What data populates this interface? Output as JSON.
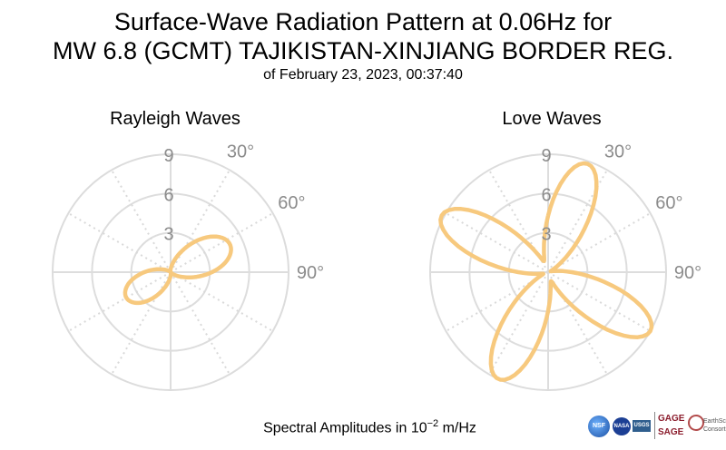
{
  "title": {
    "line1": "Surface-Wave Radiation Pattern at 0.06Hz for",
    "line2": "MW 6.8 (GCMT) TAJIKISTAN-XINJIANG BORDER REG.",
    "subtitle": "of February 23, 2023, 00:37:40"
  },
  "footer": {
    "label_prefix": "Spectral Amplitudes in 10",
    "label_exponent": "−2",
    "label_suffix": " m/Hz"
  },
  "logos": {
    "nsf": "NSF",
    "nasa": "NASA",
    "usgs": "USGS",
    "gage": "GAGE",
    "sage": "SAGE",
    "earthscope_line1": "EarthScope",
    "earthscope_line2": "Consortium"
  },
  "colors": {
    "pattern": "#f7c97e",
    "grid": "#dddddd",
    "tick_label": "#8c8c8c"
  },
  "chart_data": [
    {
      "type": "polar-line",
      "title": "Rayleigh Waves",
      "rmax": 9,
      "radial_ticks": [
        "3",
        "6",
        "9"
      ],
      "angular_ticks": [
        "30°",
        "60°",
        "90°"
      ],
      "direction": "clockwise",
      "zero_location": "north",
      "grid": true,
      "lobes": [
        {
          "azimuth_deg": 65,
          "amplitude": 5.0,
          "half_width_deg": 42
        },
        {
          "azimuth_deg": 240,
          "amplitude": 3.9,
          "half_width_deg": 42
        }
      ],
      "samples": [
        {
          "azimuth": 0,
          "amplitude": 0.3
        },
        {
          "azimuth": 30,
          "amplitude": 2.6
        },
        {
          "azimuth": 65,
          "amplitude": 5.0
        },
        {
          "azimuth": 90,
          "amplitude": 3.9
        },
        {
          "azimuth": 120,
          "amplitude": 1.0
        },
        {
          "azimuth": 150,
          "amplitude": 0.2
        },
        {
          "azimuth": 180,
          "amplitude": 0.3
        },
        {
          "azimuth": 210,
          "amplitude": 2.0
        },
        {
          "azimuth": 240,
          "amplitude": 3.9
        },
        {
          "azimuth": 270,
          "amplitude": 3.0
        },
        {
          "azimuth": 300,
          "amplitude": 0.8
        },
        {
          "azimuth": 330,
          "amplitude": 0.2
        }
      ]
    },
    {
      "type": "polar-line",
      "title": "Love Waves",
      "rmax": 9,
      "radial_ticks": [
        "3",
        "6",
        "9"
      ],
      "angular_ticks": [
        "30°",
        "60°",
        "90°"
      ],
      "direction": "clockwise",
      "zero_location": "north",
      "grid": true,
      "lobes": [
        {
          "azimuth_deg": 20,
          "amplitude": 8.8,
          "half_width_deg": 27
        },
        {
          "azimuth_deg": 120,
          "amplitude": 9.0,
          "half_width_deg": 27
        },
        {
          "azimuth_deg": 205,
          "amplitude": 9.0,
          "half_width_deg": 27
        },
        {
          "azimuth_deg": 298,
          "amplitude": 9.2,
          "half_width_deg": 27
        }
      ],
      "samples": [
        {
          "azimuth": 0,
          "amplitude": 7.2
        },
        {
          "azimuth": 20,
          "amplitude": 8.8
        },
        {
          "azimuth": 45,
          "amplitude": 5.5
        },
        {
          "azimuth": 70,
          "amplitude": 0.5
        },
        {
          "azimuth": 100,
          "amplitude": 6.5
        },
        {
          "azimuth": 120,
          "amplitude": 9.0
        },
        {
          "azimuth": 150,
          "amplitude": 6.0
        },
        {
          "azimuth": 165,
          "amplitude": 1.0
        },
        {
          "azimuth": 185,
          "amplitude": 6.8
        },
        {
          "azimuth": 205,
          "amplitude": 9.0
        },
        {
          "azimuth": 230,
          "amplitude": 6.0
        },
        {
          "azimuth": 255,
          "amplitude": 1.2
        },
        {
          "azimuth": 280,
          "amplitude": 7.0
        },
        {
          "azimuth": 298,
          "amplitude": 9.2
        },
        {
          "azimuth": 325,
          "amplitude": 5.8
        },
        {
          "azimuth": 345,
          "amplitude": 2.5
        }
      ]
    }
  ]
}
